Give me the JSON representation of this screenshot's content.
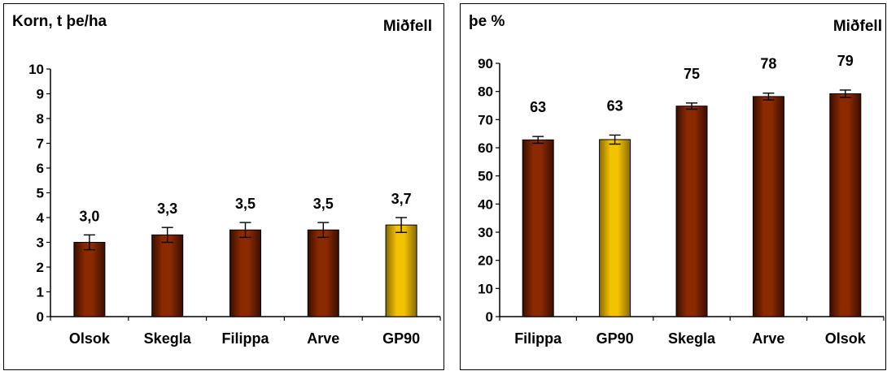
{
  "chart_data": [
    {
      "type": "bar",
      "title": "Korn, t þe/ha",
      "location": "Miðfell",
      "categories": [
        "Olsok",
        "Skegla",
        "Filippa",
        "Arve",
        "GP90"
      ],
      "values": [
        3.0,
        3.3,
        3.5,
        3.5,
        3.7
      ],
      "value_labels": [
        "3,0",
        "3,3",
        "3,5",
        "3,5",
        "3,7"
      ],
      "errors": [
        0.3,
        0.3,
        0.3,
        0.3,
        0.3
      ],
      "highlight": [
        "GP90"
      ],
      "ylim": [
        0,
        10
      ],
      "yticks": [
        0,
        1,
        2,
        3,
        4,
        5,
        6,
        7,
        8,
        9,
        10
      ],
      "ytick_labels": [
        "0",
        "1",
        "2",
        "3",
        "4",
        "5",
        "6",
        "7",
        "8",
        "9",
        "10"
      ],
      "grid": false,
      "colors": {
        "bar": "#8B2A00",
        "bar_dark": "#3a0e00",
        "bar_highlight": "#F2C200",
        "bar_highlight_dark": "#8a6a00"
      }
    },
    {
      "type": "bar",
      "title": "þe %",
      "location": "Miðfell",
      "categories": [
        "Filippa",
        "GP90",
        "Skegla",
        "Arve",
        "Olsok"
      ],
      "values": [
        62.8,
        62.9,
        74.8,
        78.2,
        79.2
      ],
      "value_labels": [
        "63",
        "63",
        "75",
        "78",
        "79"
      ],
      "errors": [
        1.2,
        1.6,
        1.1,
        1.2,
        1.3
      ],
      "highlight": [
        "GP90"
      ],
      "ylim": [
        0,
        90
      ],
      "yticks": [
        0,
        10,
        20,
        30,
        40,
        50,
        60,
        70,
        80,
        90
      ],
      "ytick_labels": [
        "0",
        "10",
        "20",
        "30",
        "40",
        "50",
        "60",
        "70",
        "80",
        "90"
      ],
      "grid": false,
      "colors": {
        "bar": "#8B2A00",
        "bar_dark": "#3a0e00",
        "bar_highlight": "#F2C200",
        "bar_highlight_dark": "#8a6a00"
      }
    }
  ]
}
